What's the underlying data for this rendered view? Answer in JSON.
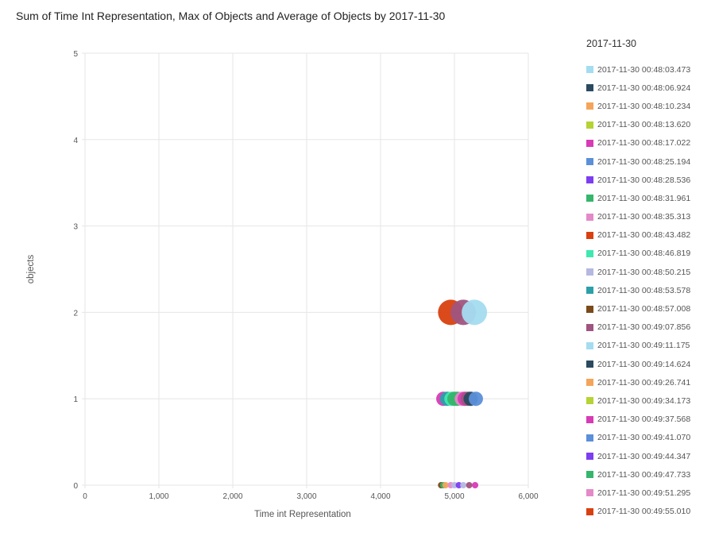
{
  "chart_data": {
    "type": "bubble",
    "title": "Sum of Time Int Representation, Max of Objects and Average of Objects by 2017-11-30",
    "xlabel": "Time int Representation",
    "ylabel": "objects",
    "xlim": [
      0,
      6000
    ],
    "ylim": [
      0,
      5
    ],
    "xticks": [
      "0",
      "1,000",
      "2,000",
      "3,000",
      "4,000",
      "5,000",
      "6,000"
    ],
    "yticks": [
      "0",
      "1",
      "2",
      "3",
      "4",
      "5"
    ],
    "grid": true,
    "legend_title": "2017-11-30",
    "legend_position": "right",
    "series": [
      {
        "name": "2017-11-30 00:48:03.473",
        "color": "#a4dcf0"
      },
      {
        "name": "2017-11-30 00:48:06.924",
        "color": "#2b4a5f"
      },
      {
        "name": "2017-11-30 00:48:10.234",
        "color": "#f5a55a"
      },
      {
        "name": "2017-11-30 00:48:13.620",
        "color": "#b5d334"
      },
      {
        "name": "2017-11-30 00:48:17.022",
        "color": "#d83bb5"
      },
      {
        "name": "2017-11-30 00:48:25.194",
        "color": "#5b8fd9"
      },
      {
        "name": "2017-11-30 00:48:28.536",
        "color": "#7c3ef0"
      },
      {
        "name": "2017-11-30 00:48:31.961",
        "color": "#36b56c"
      },
      {
        "name": "2017-11-30 00:48:35.313",
        "color": "#e48ac8"
      },
      {
        "name": "2017-11-30 00:48:43.482",
        "color": "#d9400f"
      },
      {
        "name": "2017-11-30 00:48:46.819",
        "color": "#3ee8b0"
      },
      {
        "name": "2017-11-30 00:48:50.215",
        "color": "#b5b8e0"
      },
      {
        "name": "2017-11-30 00:48:53.578",
        "color": "#2ca0a8"
      },
      {
        "name": "2017-11-30 00:48:57.008",
        "color": "#7a4a1a"
      },
      {
        "name": "2017-11-30 00:49:07.856",
        "color": "#a05480"
      },
      {
        "name": "2017-11-30 00:49:11.175",
        "color": "#a4dcf0"
      },
      {
        "name": "2017-11-30 00:49:14.624",
        "color": "#2b4a5f"
      },
      {
        "name": "2017-11-30 00:49:26.741",
        "color": "#f5a55a"
      },
      {
        "name": "2017-11-30 00:49:34.173",
        "color": "#b5d334"
      },
      {
        "name": "2017-11-30 00:49:37.568",
        "color": "#d83bb5"
      },
      {
        "name": "2017-11-30 00:49:41.070",
        "color": "#5b8fd9"
      },
      {
        "name": "2017-11-30 00:49:44.347",
        "color": "#7c3ef0"
      },
      {
        "name": "2017-11-30 00:49:47.733",
        "color": "#36b56c"
      },
      {
        "name": "2017-11-30 00:49:51.295",
        "color": "#e48ac8"
      },
      {
        "name": "2017-11-30 00:49:55.010",
        "color": "#d9400f"
      }
    ],
    "points": [
      {
        "s": 13,
        "x": 4820,
        "y": 0,
        "size": 0
      },
      {
        "s": 7,
        "x": 4850,
        "y": 0,
        "size": 0
      },
      {
        "s": 2,
        "x": 4880,
        "y": 0,
        "size": 0
      },
      {
        "s": 8,
        "x": 4950,
        "y": 0,
        "size": 0
      },
      {
        "s": 11,
        "x": 5000,
        "y": 0,
        "size": 0
      },
      {
        "s": 6,
        "x": 5060,
        "y": 0,
        "size": 0
      },
      {
        "s": 11,
        "x": 5120,
        "y": 0,
        "size": 0
      },
      {
        "s": 14,
        "x": 5200,
        "y": 0,
        "size": 0
      },
      {
        "s": 19,
        "x": 5280,
        "y": 0,
        "size": 0
      },
      {
        "s": 4,
        "x": 4850,
        "y": 1,
        "size": 1
      },
      {
        "s": 12,
        "x": 4900,
        "y": 1,
        "size": 1
      },
      {
        "s": 10,
        "x": 4960,
        "y": 1,
        "size": 1
      },
      {
        "s": 7,
        "x": 5000,
        "y": 1,
        "size": 1
      },
      {
        "s": 22,
        "x": 5040,
        "y": 1,
        "size": 1
      },
      {
        "s": 8,
        "x": 5100,
        "y": 1,
        "size": 1
      },
      {
        "s": 19,
        "x": 5140,
        "y": 1,
        "size": 1
      },
      {
        "s": 14,
        "x": 5180,
        "y": 1,
        "size": 1
      },
      {
        "s": 16,
        "x": 5220,
        "y": 1,
        "size": 1
      },
      {
        "s": 20,
        "x": 5290,
        "y": 1,
        "size": 1
      },
      {
        "s": 9,
        "x": 4950,
        "y": 2,
        "size": 2
      },
      {
        "s": 14,
        "x": 5120,
        "y": 2,
        "size": 2
      },
      {
        "s": 15,
        "x": 5270,
        "y": 2,
        "size": 2
      }
    ]
  }
}
